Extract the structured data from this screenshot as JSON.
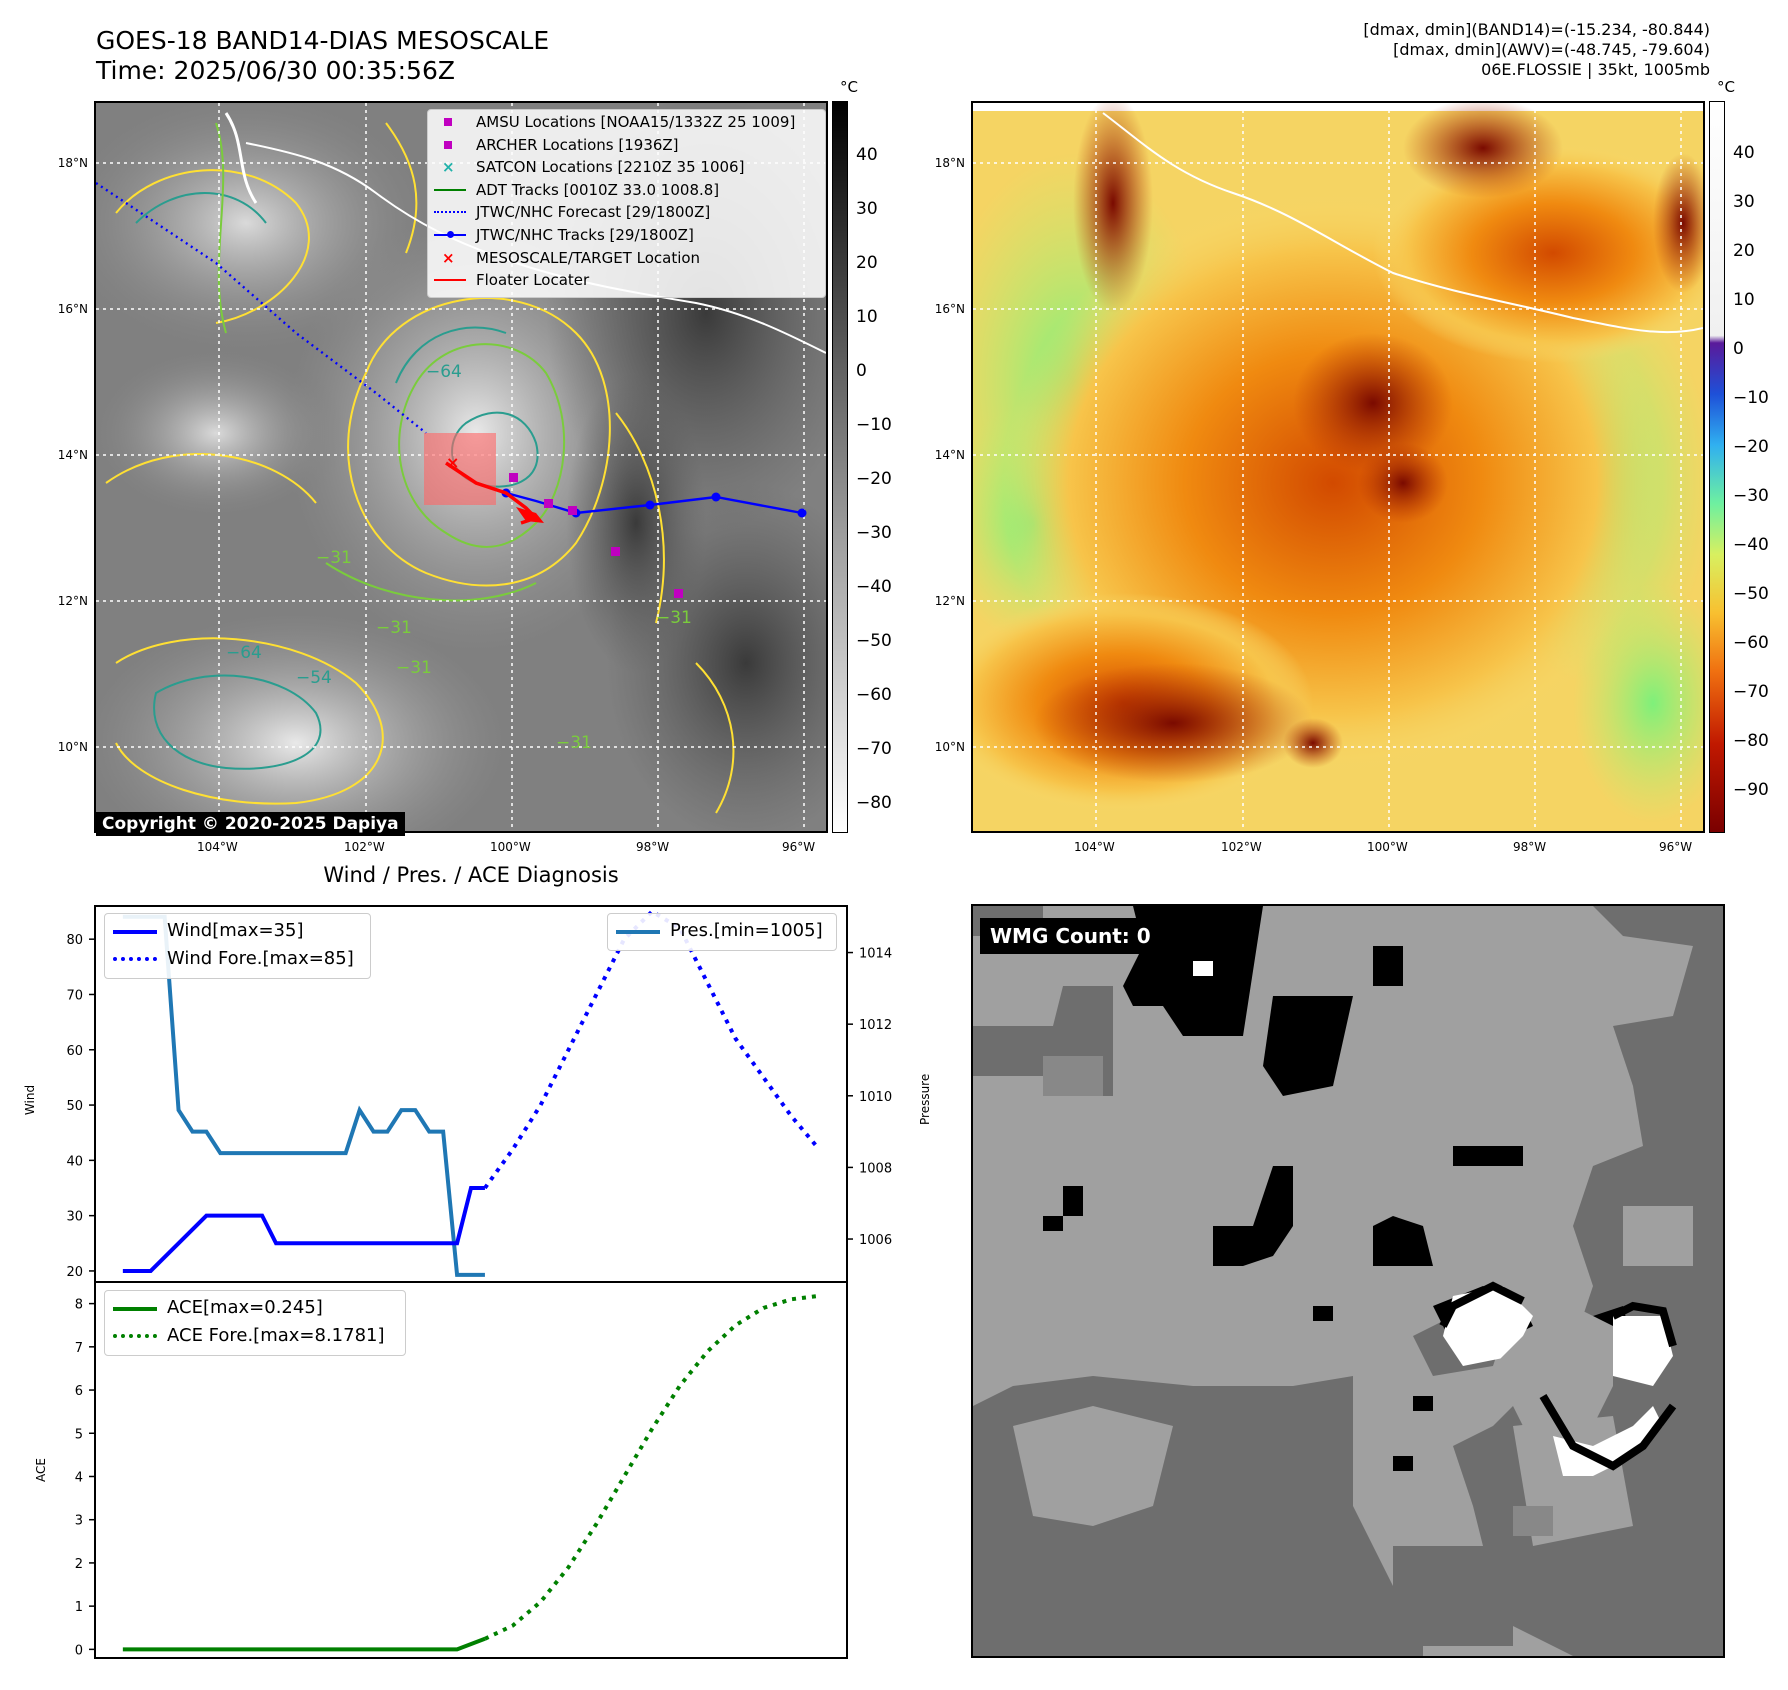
{
  "header": {
    "title_line1": "GOES-18 BAND14-DIAS MESOSCALE",
    "title_line2": "Time: 2025/06/30 00:35:56Z",
    "info_line1": "[dmax, dmin](BAND14)=(-15.234, -80.844)",
    "info_line2": "[dmax, dmin](AWV)=(-48.745, -79.604)",
    "info_line3": "06E.FLOSSIE | 35kt, 1005mb"
  },
  "map_axes": {
    "lon_ticks": [
      "104°W",
      "102°W",
      "100°W",
      "98°W",
      "96°W"
    ],
    "lat_ticks": [
      "18°N",
      "16°N",
      "14°N",
      "12°N",
      "10°N"
    ]
  },
  "ir_panel": {
    "colorbar_unit": "°C",
    "colorbar_ticks": [
      "40",
      "30",
      "20",
      "10",
      "0",
      "−10",
      "−20",
      "−30",
      "−40",
      "−50",
      "−60",
      "−70",
      "−80"
    ],
    "contour_labels": [
      "−64",
      "−31",
      "−31",
      "−54",
      "−64",
      "−31",
      "−31",
      "−31"
    ],
    "legend": [
      {
        "label": "AMSU Locations [NOAA15/1332Z 25 1009]",
        "marker": "square",
        "color": "#c000c0"
      },
      {
        "label": "ARCHER Locations [1936Z]",
        "marker": "square",
        "color": "#c000c0"
      },
      {
        "label": "SATCON Locations [2210Z 35 1006]",
        "marker": "x",
        "color": "#20b2aa"
      },
      {
        "label": "ADT Tracks [0010Z 33.0 1008.8]",
        "marker": "line",
        "color": "#008000"
      },
      {
        "label": "JTWC/NHC Forecast [29/1800Z]",
        "marker": "dotted",
        "color": "#0000ff"
      },
      {
        "label": "JTWC/NHC Tracks [29/1800Z]",
        "marker": "line-dot",
        "color": "#0000ff"
      },
      {
        "label": "MESOSCALE/TARGET Location",
        "marker": "x",
        "color": "#ff0000"
      },
      {
        "label": "Floater Locater",
        "marker": "line",
        "color": "#ff0000"
      }
    ],
    "copyright": "Copyright © 2020-2025 Dapiya"
  },
  "awv_panel": {
    "colorbar_unit": "°C",
    "colorbar_ticks": [
      "40",
      "30",
      "20",
      "10",
      "0",
      "−10",
      "−20",
      "−30",
      "−40",
      "−50",
      "−60",
      "−70",
      "−80",
      "−90"
    ]
  },
  "diagnosis": {
    "title": "Wind / Pres. / ACE Diagnosis",
    "wind_ylabel": "Wind",
    "pres_ylabel": "Pressure",
    "ace_ylabel": "ACE",
    "wind_ticks": [
      "80",
      "70",
      "60",
      "50",
      "40",
      "30",
      "20"
    ],
    "pres_ticks": [
      "1014",
      "1012",
      "1010",
      "1008",
      "1006"
    ],
    "ace_ticks": [
      "8",
      "7",
      "6",
      "5",
      "4",
      "3",
      "2",
      "1",
      "0"
    ],
    "legend_wind": "Wind[max=35]",
    "legend_wind_fore": "Wind Fore.[max=85]",
    "legend_pres": "Pres.[min=1005]",
    "legend_ace": "ACE[max=0.245]",
    "legend_ace_fore": "ACE Fore.[max=8.1781]"
  },
  "wmg_panel": {
    "label": "WMG Count: 0"
  },
  "chart_data": [
    {
      "type": "line",
      "title": "Wind / Pres. / ACE Diagnosis",
      "ylabel": "Wind",
      "ylim": [
        18,
        86
      ],
      "x": [
        0,
        1,
        2,
        3,
        4,
        5,
        6,
        7,
        8,
        9,
        10,
        11,
        12,
        13,
        14,
        15,
        16,
        17,
        18,
        19,
        20,
        21,
        22,
        23,
        24,
        25,
        26,
        27,
        28,
        29,
        30,
        31,
        32,
        33,
        34,
        35,
        36,
        37,
        38,
        39,
        40,
        41,
        42,
        43,
        44,
        45,
        46,
        47,
        48,
        49,
        50
      ],
      "series": [
        {
          "name": "Wind[max=35]",
          "color": "#0000ff",
          "style": "solid",
          "x": [
            0,
            2,
            4,
            6,
            7,
            8,
            9,
            10,
            11,
            12,
            13,
            14,
            15,
            16,
            17,
            18,
            19,
            20,
            21,
            22,
            23,
            24,
            25,
            26
          ],
          "values": [
            20,
            20,
            25,
            30,
            30,
            30,
            30,
            30,
            25,
            25,
            25,
            25,
            25,
            25,
            25,
            25,
            25,
            25,
            25,
            25,
            25,
            25,
            35,
            35
          ]
        },
        {
          "name": "Wind Fore.[max=85]",
          "color": "#0000ff",
          "style": "dotted",
          "x": [
            26,
            28,
            30,
            32,
            34,
            36,
            38,
            40,
            42,
            44,
            46,
            48,
            50
          ],
          "values": [
            35,
            42,
            50,
            60,
            70,
            80,
            85,
            82,
            72,
            62,
            55,
            48,
            42
          ]
        }
      ]
    },
    {
      "type": "line",
      "ylabel": "Pressure",
      "ylim": [
        1004.8,
        1015.3
      ],
      "series": [
        {
          "name": "Pres.[min=1005]",
          "color": "#1f77b4",
          "style": "solid",
          "x": [
            0,
            3,
            4,
            5,
            6,
            7,
            8,
            9,
            10,
            11,
            12,
            13,
            14,
            15,
            16,
            17,
            18,
            19,
            20,
            21,
            22,
            23,
            24,
            25,
            26
          ],
          "values": [
            1015,
            1015,
            1009.6,
            1009,
            1009,
            1008.4,
            1008.4,
            1008.4,
            1008.4,
            1008.4,
            1008.4,
            1008.4,
            1008.4,
            1008.4,
            1008.4,
            1009.6,
            1009,
            1009,
            1009.6,
            1009.6,
            1009,
            1009,
            1005,
            1005,
            1005
          ]
        }
      ]
    },
    {
      "type": "line",
      "ylabel": "ACE",
      "ylim": [
        -0.2,
        8.5
      ],
      "series": [
        {
          "name": "ACE[max=0.245]",
          "color": "#008000",
          "style": "solid",
          "x": [
            0,
            6,
            12,
            18,
            24,
            26
          ],
          "values": [
            0,
            0,
            0,
            0,
            0,
            0.245
          ]
        },
        {
          "name": "ACE Fore.[max=8.1781]",
          "color": "#008000",
          "style": "dotted",
          "x": [
            26,
            28,
            30,
            32,
            34,
            36,
            38,
            40,
            42,
            44,
            46,
            48,
            50
          ],
          "values": [
            0.245,
            0.55,
            1.1,
            1.9,
            2.9,
            4.0,
            5.1,
            6.1,
            6.9,
            7.5,
            7.9,
            8.1,
            8.18
          ]
        }
      ]
    }
  ]
}
